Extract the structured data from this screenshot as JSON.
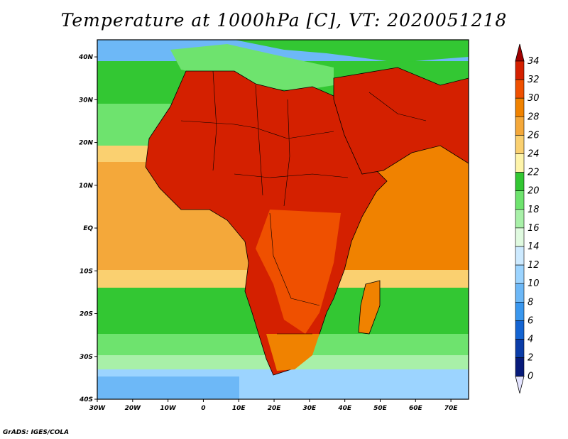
{
  "title": "Temperature at 1000hPa [C], VT: 2020051218",
  "credit": "GrADS: IGES/COLA",
  "map": {
    "x_ticks": [
      "30W",
      "20W",
      "10W",
      "0",
      "10E",
      "20E",
      "30E",
      "40E",
      "50E",
      "60E",
      "70E"
    ],
    "y_ticks": [
      "40N",
      "30N",
      "20N",
      "10N",
      "EQ",
      "10S",
      "20S",
      "30S",
      "40S"
    ],
    "lon_range": [
      -30,
      75
    ],
    "lat_range": [
      -40,
      44
    ]
  },
  "colorbar": {
    "labels": [
      "34",
      "32",
      "30",
      "28",
      "26",
      "24",
      "22",
      "20",
      "18",
      "16",
      "14",
      "12",
      "10",
      "8",
      "6",
      "4",
      "2",
      "0"
    ],
    "colors": [
      "#a00000",
      "#d42000",
      "#ef5000",
      "#f08200",
      "#f4a83a",
      "#fad070",
      "#fef4aa",
      "#33c733",
      "#6ee36e",
      "#a8f0a8",
      "#e0fae0",
      "#cdeaff",
      "#9cd4ff",
      "#6db8f7",
      "#3a97ee",
      "#1464d2",
      "#0a3ca8",
      "#071a7a",
      "#000060"
    ]
  },
  "colors": {
    "ocean_south": "#6db8f7",
    "ocean_cool": "#33c733",
    "ocean_mild": "#f4a83a",
    "ocean_warm": "#f08200",
    "land_hot": "#d42000",
    "land_warm": "#ef5000",
    "sea_med": "#6ee36e"
  }
}
